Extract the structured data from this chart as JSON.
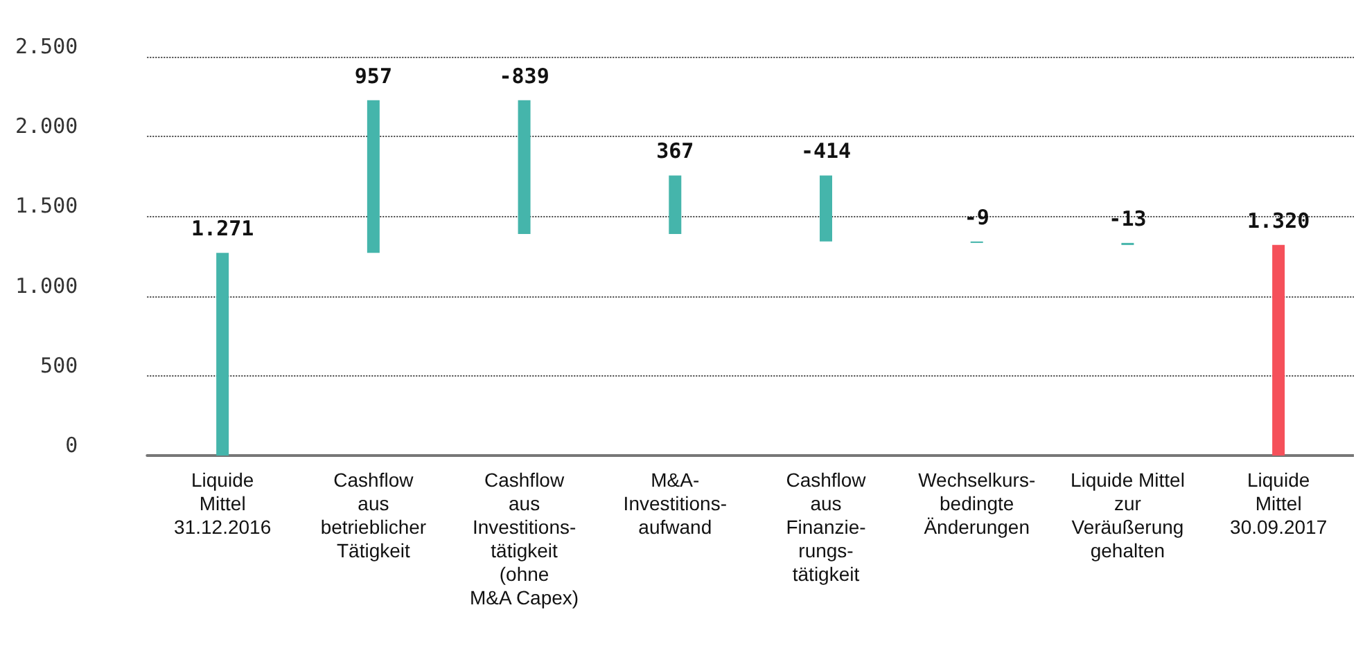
{
  "chart_data": {
    "type": "bar",
    "categories": [
      "Liquide\nMittel\n31.12.2016",
      "Cashflow\naus\nbetrieblicher\nTätigkeit",
      "Cashflow\naus\nInvestitions-\ntätigkeit\n(ohne\nM&A Capex)",
      "M&A-\nInvestitions-\naufwand",
      "Cashflow\naus\nFinanzie-\nrungs-\ntätigkeit",
      "Wechselkurs-\nbedingte\nÄnderungen",
      "Liquide Mittel\nzur\nVeräußerung\ngehalten",
      "Liquide\nMittel\n30.09.2017"
    ],
    "values": [
      1271,
      957,
      -839,
      367,
      -414,
      -9,
      -13,
      1320
    ],
    "base": [
      0,
      1271,
      2228,
      1389,
      1756,
      1342,
      1333,
      0
    ],
    "colors": [
      "#45b5ab",
      "#45b5ab",
      "#45b5ab",
      "#45b5ab",
      "#45b5ab",
      "#45b5ab",
      "#45b5ab",
      "#f5505a"
    ],
    "value_labels": [
      "1.271",
      "957",
      "-839",
      "367",
      "-414",
      "-9",
      "-13",
      "1.320"
    ],
    "ylim": [
      0,
      2500
    ],
    "yticks": [
      0,
      {
        "value": 500,
        "label": "500"
      },
      {
        "value": 1000,
        "label": "1.000"
      },
      {
        "value": 1500,
        "label": "1.500"
      },
      {
        "value": 2000,
        "label": "2.000"
      },
      {
        "value": 2500,
        "label": "2.500"
      }
    ],
    "grid": "y"
  }
}
